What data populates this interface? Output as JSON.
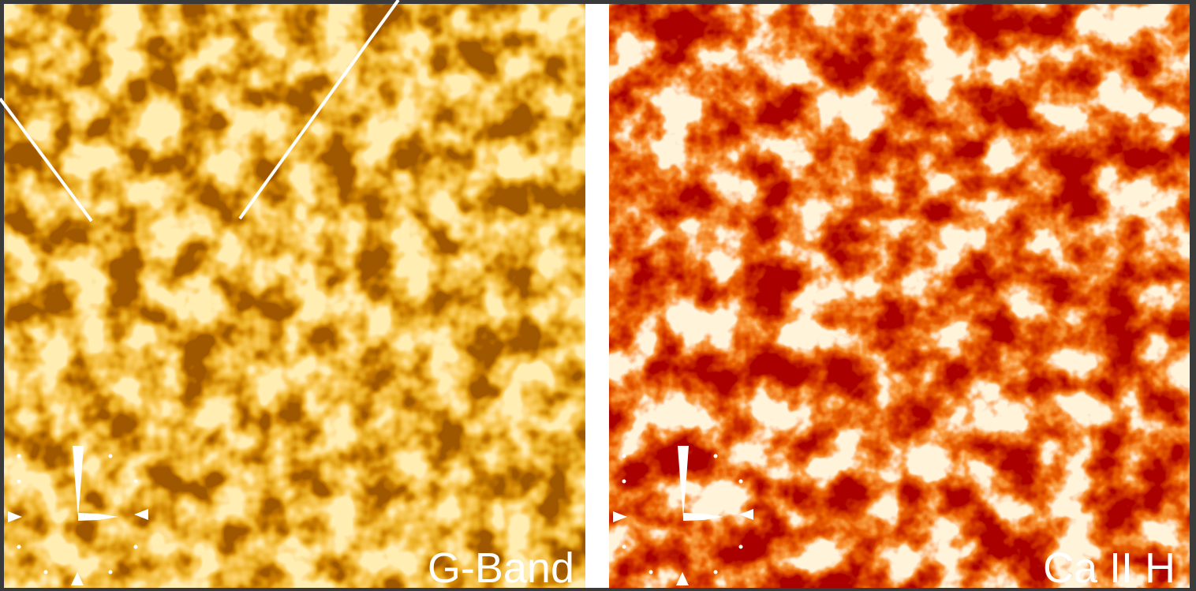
{
  "panels": [
    {
      "label": "G-Band"
    },
    {
      "label": "Ca II H"
    }
  ]
}
